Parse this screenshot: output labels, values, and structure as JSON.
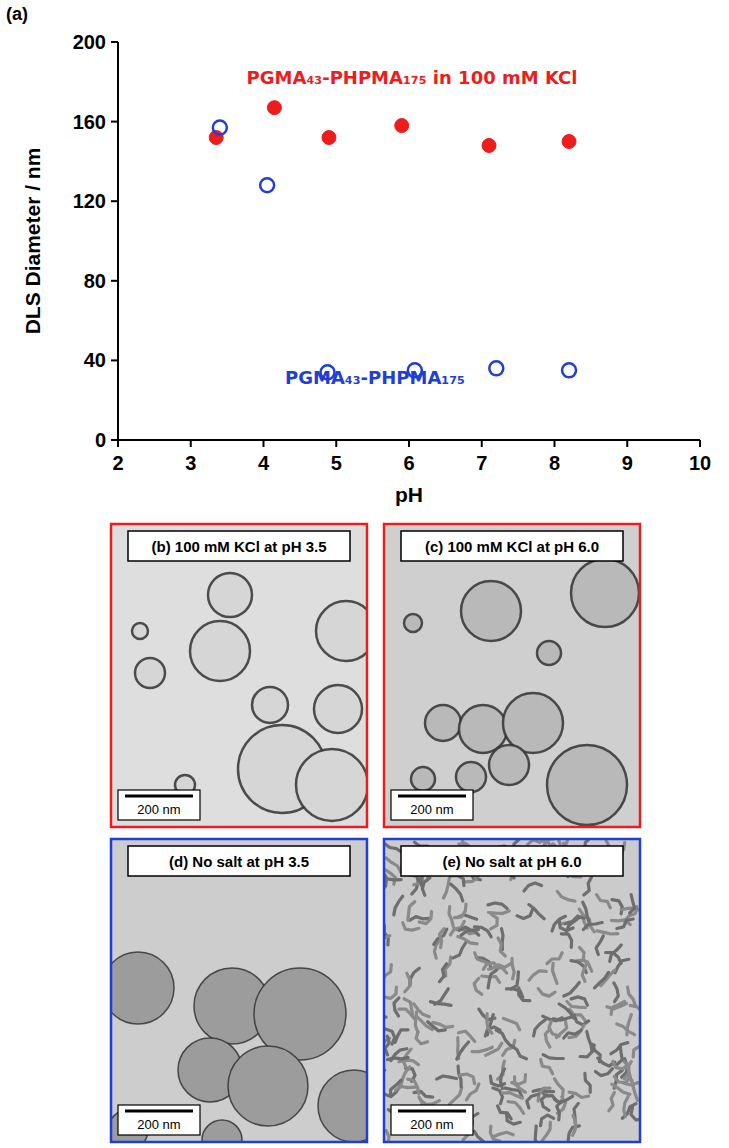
{
  "chart_data": {
    "type": "scatter",
    "title": "(a)",
    "x_label": "pH",
    "y_label": "DLS Diameter / nm",
    "xlim": [
      2,
      10
    ],
    "xticks": [
      2,
      3,
      4,
      5,
      6,
      7,
      8,
      9,
      10
    ],
    "ylim": [
      0,
      200
    ],
    "yticks": [
      0,
      40,
      80,
      120,
      160,
      200
    ],
    "grid": false,
    "series": [
      {
        "name": "PGMA₄₃-PHPMA₁₇₅ in 100 mM KCl",
        "color": "#ee1c1c",
        "marker": "filled",
        "x": [
          3.35,
          4.15,
          4.9,
          5.9,
          7.1,
          8.2
        ],
        "values": [
          152,
          167,
          152,
          158,
          148,
          150
        ]
      },
      {
        "name": "PGMA₄₃-PHPMA₁₇₅",
        "color": "#1f3fd6",
        "marker": "open",
        "x": [
          3.4,
          4.05,
          4.88,
          6.08,
          7.2,
          8.2
        ],
        "values": [
          157,
          128,
          34,
          35,
          36,
          35
        ]
      }
    ]
  },
  "panels": [
    {
      "label": "(b) 100 mM KCl at pH 3.5",
      "scale_bar": "200 nm",
      "color": "#ee1c1c"
    },
    {
      "label": "(c) 100 mM KCl at pH 6.0",
      "scale_bar": "200 nm",
      "color": "#ee1c1c"
    },
    {
      "label": "(d) No salt at pH 3.5",
      "scale_bar": "200 nm",
      "color": "#1f3fd6"
    },
    {
      "label": "(e) No salt at pH 6.0",
      "scale_bar": "200 nm",
      "color": "#1f3fd6"
    }
  ]
}
